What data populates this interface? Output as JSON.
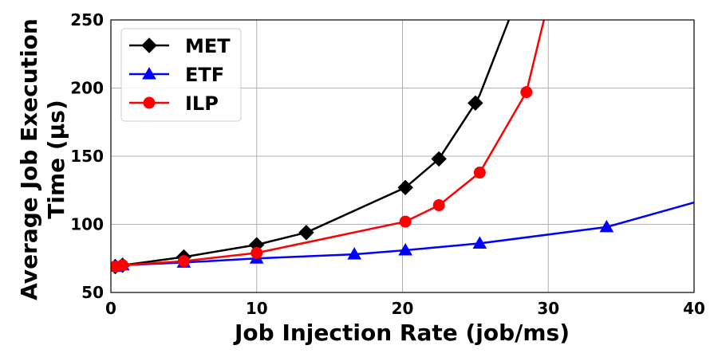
{
  "chart_data": {
    "type": "line",
    "title": "",
    "xlabel": "Job Injection Rate (job/ms)",
    "ylabel_line1": "Average Job Execution",
    "ylabel_line2": "Time (μs)",
    "xlim": [
      0,
      40
    ],
    "ylim": [
      50,
      250
    ],
    "xticks": [
      0,
      10,
      20,
      30,
      40
    ],
    "yticks": [
      50,
      100,
      150,
      200,
      250
    ],
    "grid": true,
    "legend_position": "top-left",
    "series": [
      {
        "name": "MET",
        "color": "#000000",
        "marker": "diamond",
        "points": [
          [
            0.3,
            69
          ],
          [
            0.8,
            70
          ],
          [
            5.0,
            76
          ],
          [
            10.0,
            85
          ],
          [
            13.4,
            94
          ],
          [
            20.2,
            127
          ],
          [
            22.5,
            148
          ],
          [
            25.0,
            189
          ],
          [
            25.3,
            195
          ],
          [
            27.3,
            250
          ]
        ]
      },
      {
        "name": "ETF",
        "color": "#0000ff",
        "marker": "triangle",
        "points": [
          [
            0.3,
            69
          ],
          [
            0.8,
            70
          ],
          [
            5.0,
            72
          ],
          [
            10.0,
            75
          ],
          [
            16.7,
            78
          ],
          [
            20.2,
            81
          ],
          [
            25.3,
            86
          ],
          [
            34.0,
            98
          ],
          [
            40.0,
            116
          ]
        ]
      },
      {
        "name": "ILP",
        "color": "#ff0000",
        "marker": "circle",
        "points": [
          [
            0.3,
            69
          ],
          [
            0.8,
            70
          ],
          [
            5.0,
            73
          ],
          [
            10.0,
            79
          ],
          [
            20.2,
            102
          ],
          [
            22.5,
            114
          ],
          [
            25.3,
            138
          ],
          [
            28.5,
            197
          ],
          [
            29.7,
            250
          ]
        ]
      }
    ],
    "marker_visible_upto": {
      "MET": 8,
      "ETF": 8,
      "ILP": 8
    }
  }
}
